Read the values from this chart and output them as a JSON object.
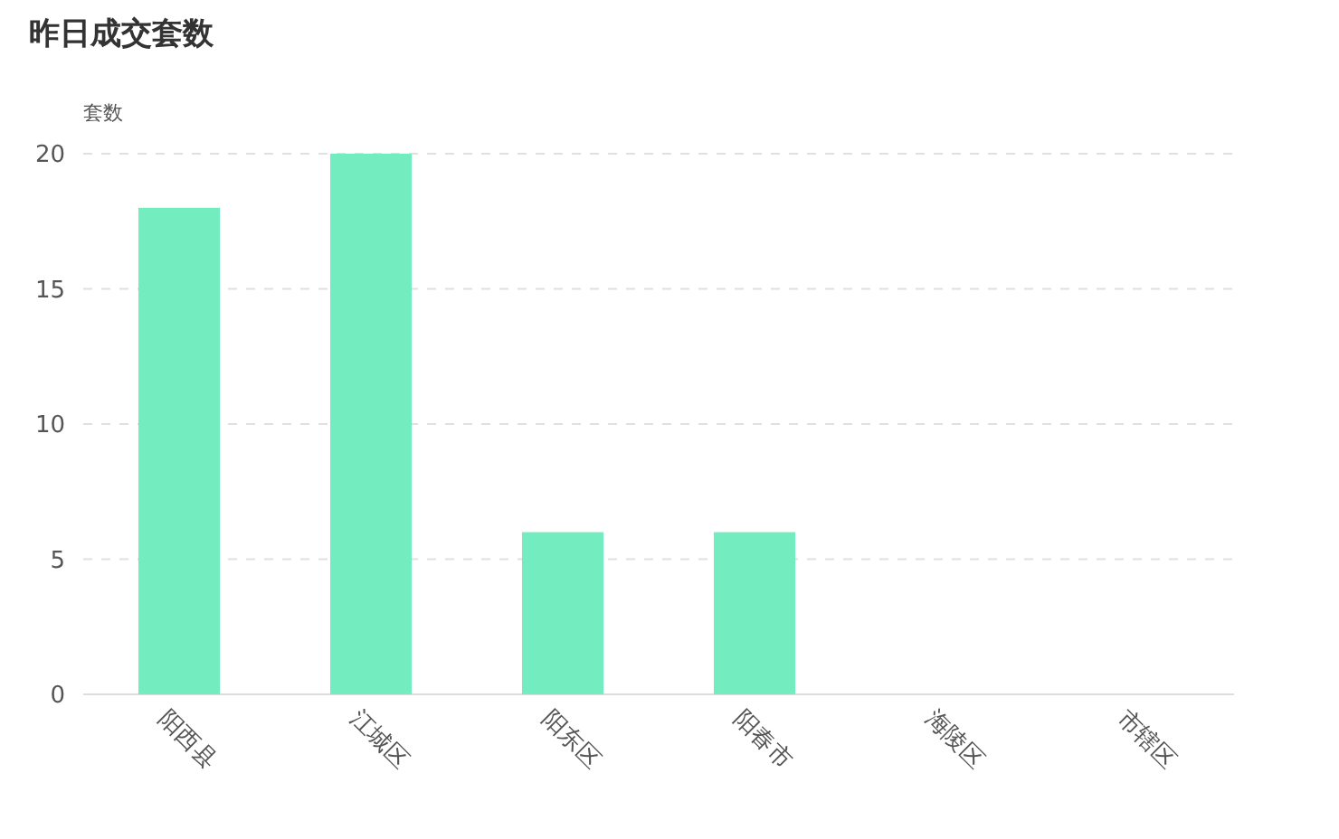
{
  "chart_data": {
    "type": "bar",
    "title": "昨日成交套数",
    "ylabel": "套数",
    "categories": [
      "阳西县",
      "江城区",
      "阳东区",
      "阳春市",
      "海陵区",
      "市辖区"
    ],
    "values": [
      18,
      20,
      6,
      6,
      0,
      0
    ],
    "color": "#73ecbf",
    "ylim": [
      0,
      20
    ],
    "yticks": [
      0,
      5,
      10,
      15,
      20
    ],
    "grid": "y"
  }
}
